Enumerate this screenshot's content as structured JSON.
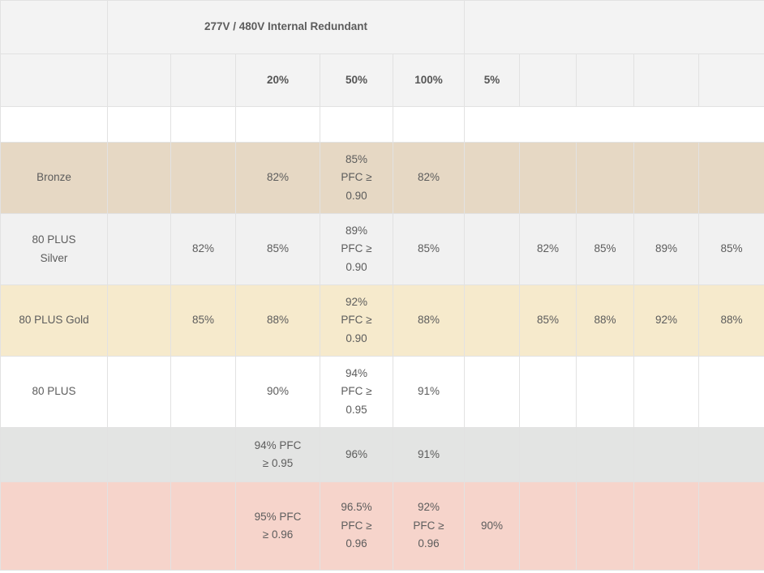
{
  "header": {
    "left_blurred": "",
    "group_title": "277V / 480V Internal Redundant",
    "right_blurred": ""
  },
  "subheader": {
    "label_blurred": "",
    "col1_blurred": "",
    "col2_blurred": "",
    "load_20": "20%",
    "load_50": "50%",
    "load_100": "100%",
    "load_5": "5%",
    "col7_blurred": "",
    "col8_blurred": "",
    "col9_blurred": "",
    "col10_blurred": ""
  },
  "rows": [
    {
      "id": "bronze",
      "label": "Bronze",
      "c1": "",
      "c2": "",
      "c3": "82%",
      "c4_line1": "85%",
      "c4_line2": "PFC ≥",
      "c4_line3": "0.90",
      "c5": "82%",
      "c6": "",
      "c7": "",
      "c8": "",
      "c9": "",
      "c10": ""
    },
    {
      "id": "silver",
      "label_line1": "80 PLUS",
      "label_line2": "Silver",
      "c1": "",
      "c2": "82%",
      "c3": "85%",
      "c4_line1": "89%",
      "c4_line2": "PFC ≥",
      "c4_line3": "0.90",
      "c5": "85%",
      "c6": "",
      "c7": "82%",
      "c8": "85%",
      "c9": "89%",
      "c10": "85%"
    },
    {
      "id": "gold",
      "label": "80 PLUS Gold",
      "c1": "",
      "c2": "85%",
      "c3": "88%",
      "c4_line1": "92%",
      "c4_line2": "PFC ≥",
      "c4_line3": "0.90",
      "c5": "88%",
      "c6": "",
      "c7": "85%",
      "c8": "88%",
      "c9": "92%",
      "c10": "88%"
    },
    {
      "id": "platinum",
      "label_line1": "80 PLUS",
      "c1": "",
      "c2": "",
      "c3": "90%",
      "c4_line1": "94%",
      "c4_line2": "PFC ≥",
      "c4_line3": "0.95",
      "c5": "91%",
      "c6": "",
      "c7": "",
      "c8": "",
      "c9": "",
      "c10": ""
    },
    {
      "id": "titanium",
      "c1": "",
      "c2": "",
      "c3_line1": "94% PFC",
      "c3_line2": "≥ 0.95",
      "c4": "96%",
      "c5": "91%",
      "c6": "",
      "c7": "",
      "c8": "",
      "c9": "",
      "c10": ""
    },
    {
      "id": "top",
      "c1": "",
      "c2": "",
      "c3_line1": "95% PFC",
      "c3_line2": "≥ 0.96",
      "c4_line1": "96.5%",
      "c4_line2": "PFC ≥",
      "c4_line3": "0.96",
      "c5_line1": "92%",
      "c5_line2": "PFC ≥",
      "c5_line3": "0.96",
      "c6": "90%",
      "c7": "",
      "c8": "",
      "c9": "",
      "c10": ""
    }
  ]
}
